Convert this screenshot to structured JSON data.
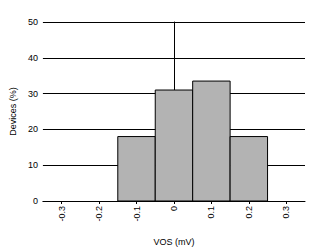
{
  "chart_data": {
    "type": "histogram",
    "xlabel": "VOS (mV)",
    "ylabel": "Devices (%)",
    "bins": [
      -0.15,
      -0.05,
      0.05,
      0.15,
      0.25
    ],
    "values": [
      18,
      31,
      33.5,
      18
    ],
    "color": "#b3b3b3",
    "xlim": [
      -0.35,
      0.35
    ],
    "xticks": [
      -0.3,
      -0.2,
      -0.1,
      0,
      0.1,
      0.2,
      0.3
    ],
    "ylim": [
      0,
      50
    ],
    "yticks": [
      0,
      10,
      20,
      30,
      40,
      50
    ],
    "grid": true
  }
}
